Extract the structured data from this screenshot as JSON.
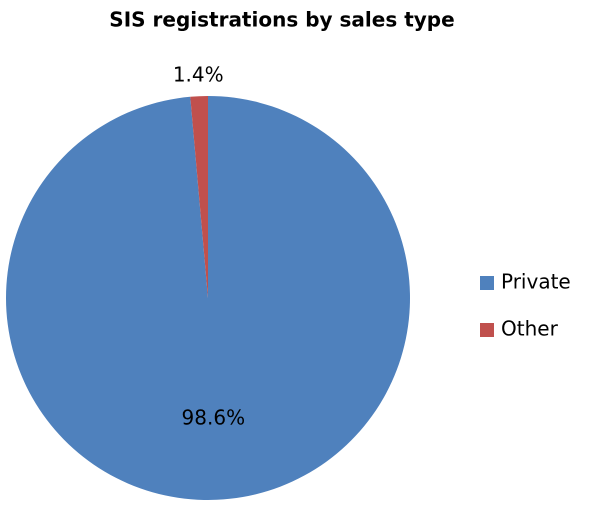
{
  "chart_data": {
    "type": "pie",
    "title": "SIS registrations by sales type",
    "categories": [
      "Private",
      "Other"
    ],
    "values": [
      98.6,
      1.4
    ],
    "value_labels": [
      "98.6%",
      "1.4%"
    ],
    "colors": [
      "#4f81bd",
      "#c0504d"
    ],
    "legend": "right"
  }
}
